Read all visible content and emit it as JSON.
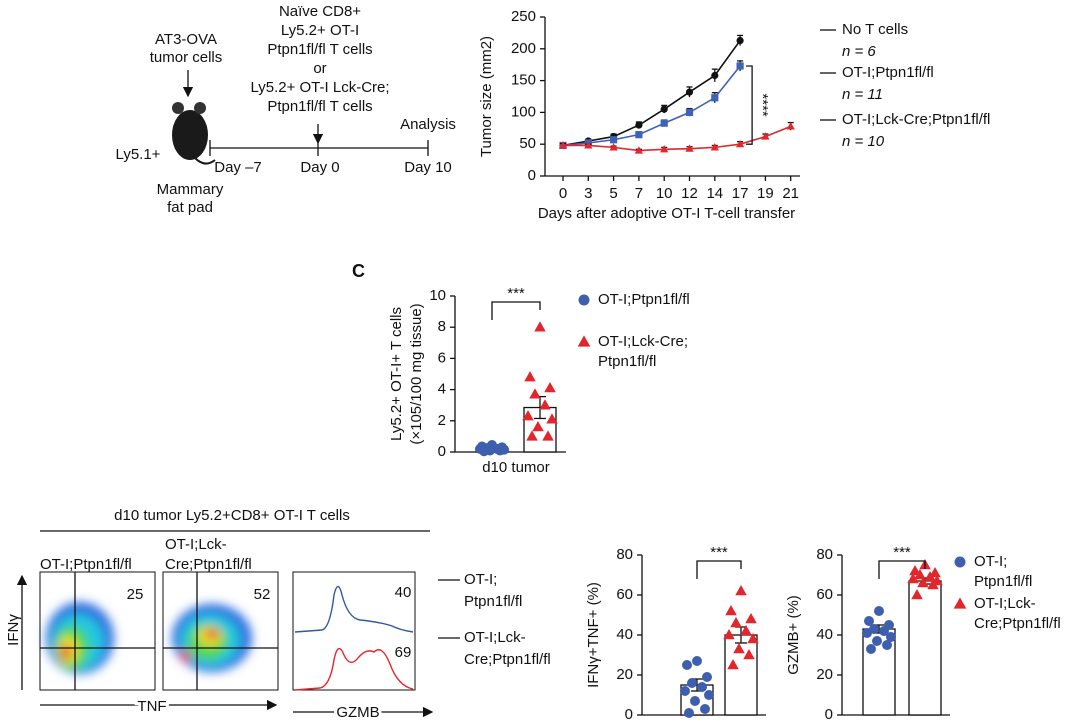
{
  "schematic": {
    "tumor": [
      "AT3-OVA",
      "tumor cells"
    ],
    "host": "Ly5.1+",
    "site": [
      "Mammary",
      "fat pad"
    ],
    "transfer": [
      "Naïve CD8+",
      "Ly5.2+ OT-I",
      "Ptpn1fl/fl T cells",
      "or",
      "Ly5.2+ OT-I Lck-Cre;",
      "Ptpn1fl/fl T cells"
    ],
    "analysis": "Analysis",
    "timeline": [
      "Day –7",
      "Day 0",
      "Day 10"
    ]
  },
  "panel_label": "C",
  "flow": {
    "header": "d10 tumor Ly5.2+CD8+ OT-I T cells",
    "plots": [
      {
        "label": [
          "OT-I;Ptpn1fl/fl"
        ],
        "value": 25
      },
      {
        "label": [
          "OT-I;Lck-",
          "Cre;Ptpn1fl/fl"
        ],
        "value": 52
      }
    ],
    "x_label": "TNF",
    "y_label": "IFNγ",
    "histogram": {
      "x_label": "GZMB",
      "values": [
        40,
        69
      ],
      "legend": [
        [
          "OT-I;",
          "Ptpn1fl/fl"
        ],
        [
          "OT-I;Lck-",
          "Cre;Ptpn1fl/fl"
        ]
      ],
      "colors": [
        "#2e58a8",
        "#e3262c"
      ]
    }
  },
  "chart_data": [
    {
      "type": "line",
      "ylabel": "Tumor size (mm2)",
      "xlabel": "Days after adoptive OT-I T-cell transfer",
      "categories": [
        "0",
        "3",
        "5",
        "7",
        "10",
        "12",
        "14",
        "17",
        "19",
        "21"
      ],
      "ylim": [
        0,
        250
      ],
      "yticks": [
        0,
        50,
        100,
        150,
        200,
        250
      ],
      "significance": "****",
      "series": [
        {
          "name": "No T cells",
          "n": "n = 6",
          "color": "#111111",
          "marker": "circle",
          "values": [
            48,
            55,
            62,
            80,
            105,
            132,
            158,
            213,
            null,
            null
          ],
          "errors": [
            3,
            3,
            4,
            5,
            6,
            8,
            10,
            8,
            null,
            null
          ]
        },
        {
          "name": "OT-I;Ptpn1fl/fl",
          "n": "n = 11",
          "color": "#3d63b8",
          "marker": "square",
          "values": [
            48,
            52,
            57,
            65,
            83,
            100,
            123,
            173,
            null,
            null
          ],
          "errors": [
            3,
            3,
            3,
            4,
            5,
            6,
            8,
            8,
            null,
            null
          ]
        },
        {
          "name": "OT-I;Lck-Cre;Ptpn1fl/fl",
          "n": "n = 10",
          "color": "#e3262c",
          "marker": "triangle",
          "values": [
            48,
            48,
            45,
            40,
            42,
            43,
            45,
            50,
            62,
            78
          ],
          "errors": [
            3,
            2,
            2,
            2,
            3,
            3,
            3,
            4,
            4,
            6
          ]
        }
      ]
    },
    {
      "type": "dot_bar",
      "ylabel": [
        "Ly5.2+ OT-I+ T cells",
        "(×105/100 mg tissue)"
      ],
      "categories": [
        "d10 tumor"
      ],
      "ylim": [
        0,
        10
      ],
      "yticks": [
        0,
        2,
        4,
        6,
        8,
        10
      ],
      "significance": "***",
      "series": [
        {
          "name": [
            "OT-I;Ptpn1fl/fl"
          ],
          "color": "#3d5fae",
          "marker": "circle",
          "mean": 0.22,
          "error": 0.04,
          "points": [
            0.45,
            0.35,
            0.3,
            0.25,
            0.2,
            0.2,
            0.15,
            0.1,
            0.1,
            0.05
          ]
        },
        {
          "name": [
            "OT-I;Lck-Cre;",
            "Ptpn1fl/fl"
          ],
          "color": "#e3262c",
          "marker": "triangle",
          "mean": 2.85,
          "error": 0.7,
          "points": [
            8.0,
            4.8,
            4.1,
            3.7,
            3.0,
            2.3,
            2.1,
            1.6,
            1.0,
            1.0
          ]
        }
      ]
    },
    {
      "type": "dot_bar",
      "ylabel": [
        "IFNγ+TNF+ (%)"
      ],
      "ylim": [
        0,
        80
      ],
      "yticks": [
        0,
        20,
        40,
        60,
        80
      ],
      "significance": "***",
      "series": [
        {
          "color": "#3d5fae",
          "marker": "circle",
          "mean": 15,
          "error": 3,
          "points": [
            27,
            25,
            19,
            16,
            14,
            12,
            10,
            7,
            3,
            1
          ]
        },
        {
          "color": "#e3262c",
          "marker": "triangle",
          "mean": 40,
          "error": 4,
          "points": [
            62,
            52,
            48,
            46,
            42,
            40,
            38,
            33,
            30,
            25
          ]
        }
      ]
    },
    {
      "type": "dot_bar",
      "ylabel": [
        "GZMB+ (%)"
      ],
      "ylim": [
        0,
        80
      ],
      "yticks": [
        0,
        20,
        40,
        60,
        80
      ],
      "significance": "***",
      "series": [
        {
          "name": [
            "OT-I;",
            "Ptpn1fl/fl"
          ],
          "color": "#3d5fae",
          "marker": "circle",
          "mean": 43,
          "error": 2,
          "points": [
            52,
            47,
            45,
            43,
            42,
            41,
            39,
            37,
            35,
            33
          ]
        },
        {
          "name": [
            "OT-I;Lck-",
            "Cre;Ptpn1fl/fl"
          ],
          "color": "#e3262c",
          "marker": "triangle",
          "mean": 67,
          "error": 1.5,
          "points": [
            75,
            72,
            71,
            70,
            69,
            68,
            67,
            66,
            65,
            60
          ]
        }
      ]
    }
  ]
}
